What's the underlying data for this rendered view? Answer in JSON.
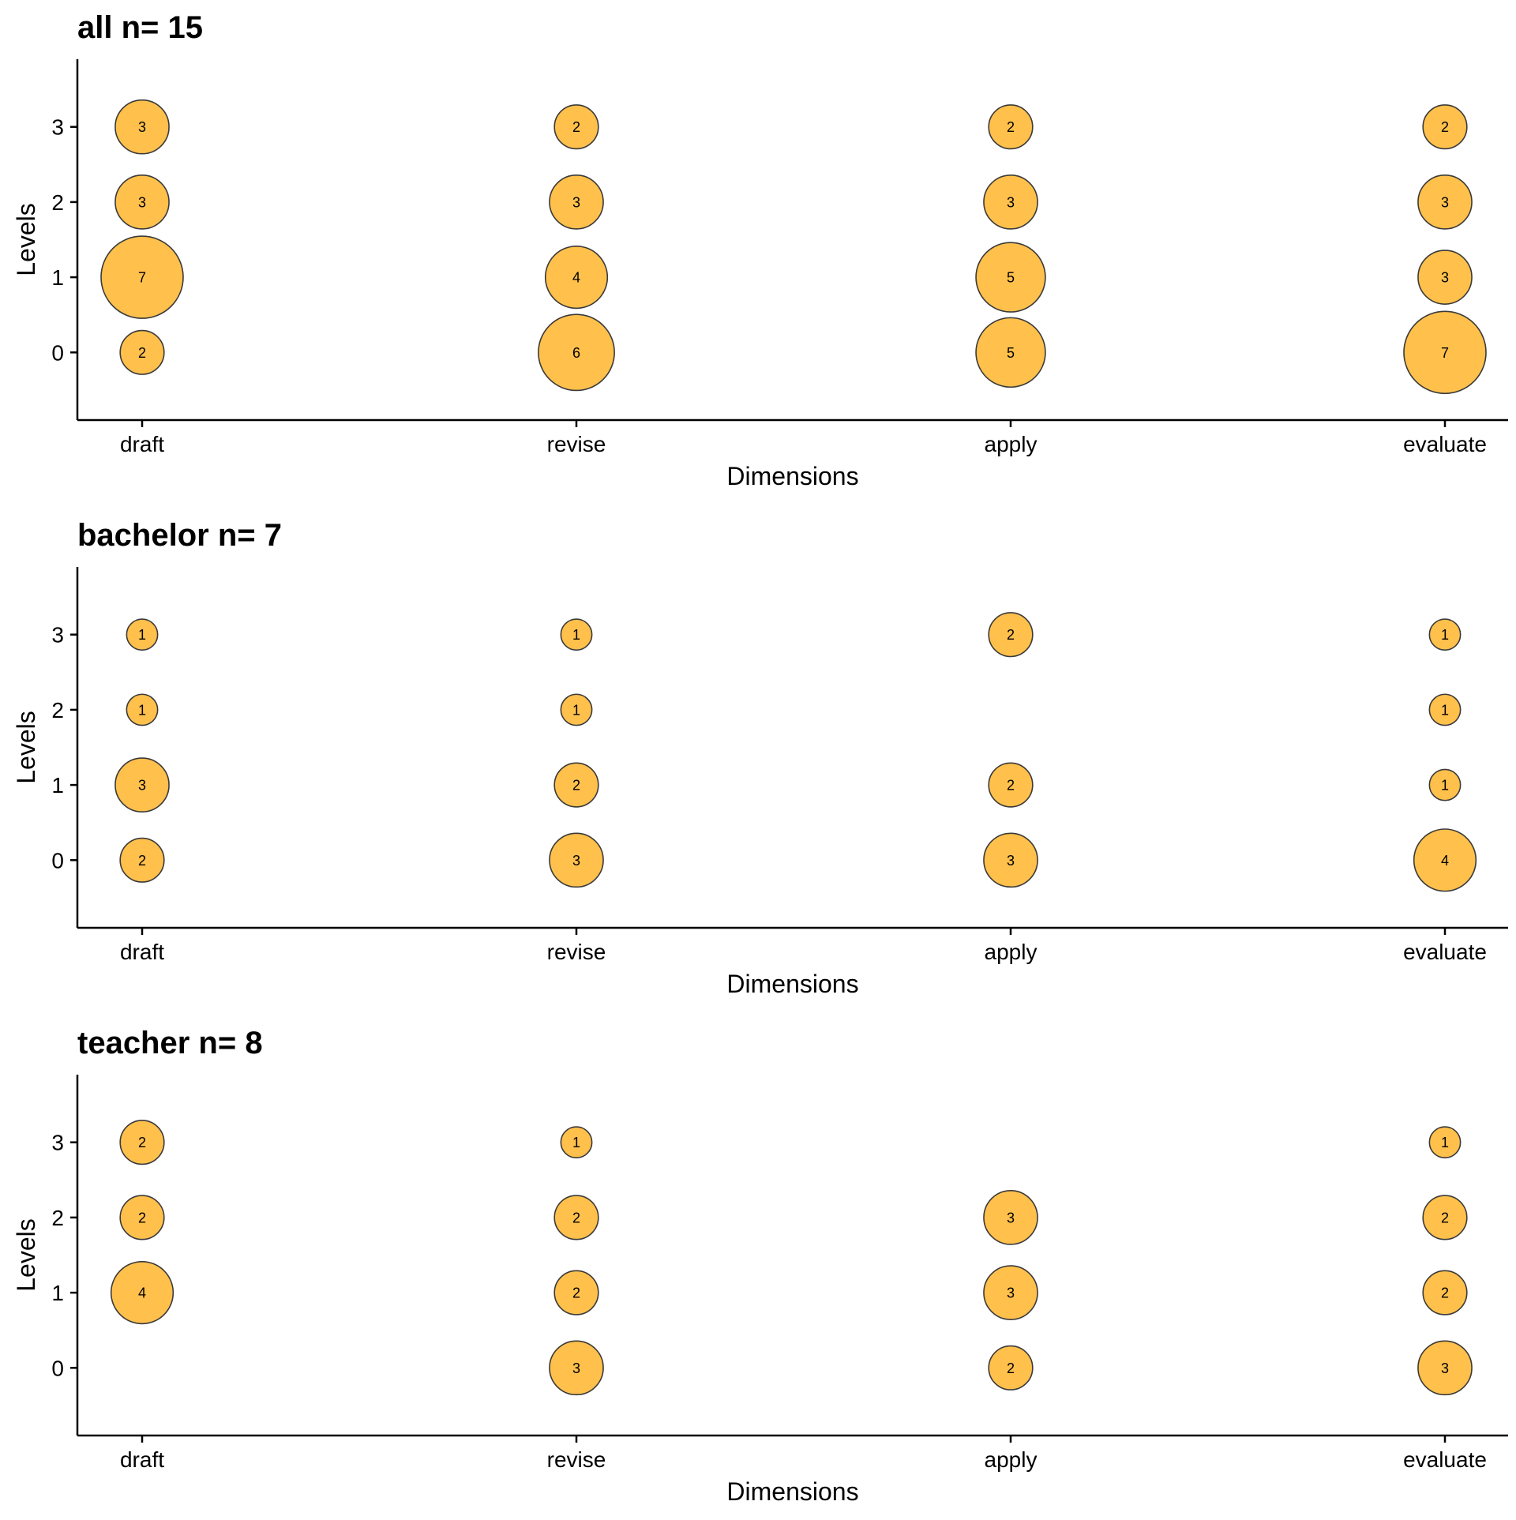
{
  "chart_data": [
    {
      "type": "scatter",
      "title": "all n= 15",
      "xlabel": "Dimensions",
      "ylabel": "Levels",
      "categories": [
        "draft",
        "revise",
        "apply",
        "evaluate"
      ],
      "y_ticks": [
        "0",
        "1",
        "2",
        "3"
      ],
      "ylim": [
        -0.9,
        3.9
      ],
      "grid": false,
      "color": "#FFC04C",
      "points": [
        {
          "x": "draft",
          "y": 3,
          "value": 3
        },
        {
          "x": "draft",
          "y": 2,
          "value": 3
        },
        {
          "x": "draft",
          "y": 1,
          "value": 7
        },
        {
          "x": "draft",
          "y": 0,
          "value": 2
        },
        {
          "x": "revise",
          "y": 3,
          "value": 2
        },
        {
          "x": "revise",
          "y": 2,
          "value": 3
        },
        {
          "x": "revise",
          "y": 1,
          "value": 4
        },
        {
          "x": "revise",
          "y": 0,
          "value": 6
        },
        {
          "x": "apply",
          "y": 3,
          "value": 2
        },
        {
          "x": "apply",
          "y": 2,
          "value": 3
        },
        {
          "x": "apply",
          "y": 1,
          "value": 5
        },
        {
          "x": "apply",
          "y": 0,
          "value": 5
        },
        {
          "x": "evaluate",
          "y": 3,
          "value": 2
        },
        {
          "x": "evaluate",
          "y": 2,
          "value": 3
        },
        {
          "x": "evaluate",
          "y": 1,
          "value": 3
        },
        {
          "x": "evaluate",
          "y": 0,
          "value": 7
        }
      ]
    },
    {
      "type": "scatter",
      "title": "bachelor n= 7",
      "xlabel": "Dimensions",
      "ylabel": "Levels",
      "categories": [
        "draft",
        "revise",
        "apply",
        "evaluate"
      ],
      "y_ticks": [
        "0",
        "1",
        "2",
        "3"
      ],
      "ylim": [
        -0.9,
        3.9
      ],
      "grid": false,
      "color": "#FFC04C",
      "points": [
        {
          "x": "draft",
          "y": 3,
          "value": 1
        },
        {
          "x": "draft",
          "y": 2,
          "value": 1
        },
        {
          "x": "draft",
          "y": 1,
          "value": 3
        },
        {
          "x": "draft",
          "y": 0,
          "value": 2
        },
        {
          "x": "revise",
          "y": 3,
          "value": 1
        },
        {
          "x": "revise",
          "y": 2,
          "value": 1
        },
        {
          "x": "revise",
          "y": 1,
          "value": 2
        },
        {
          "x": "revise",
          "y": 0,
          "value": 3
        },
        {
          "x": "apply",
          "y": 3,
          "value": 2
        },
        {
          "x": "apply",
          "y": 1,
          "value": 2
        },
        {
          "x": "apply",
          "y": 0,
          "value": 3
        },
        {
          "x": "evaluate",
          "y": 3,
          "value": 1
        },
        {
          "x": "evaluate",
          "y": 2,
          "value": 1
        },
        {
          "x": "evaluate",
          "y": 1,
          "value": 1
        },
        {
          "x": "evaluate",
          "y": 0,
          "value": 4
        }
      ]
    },
    {
      "type": "scatter",
      "title": "teacher n= 8",
      "xlabel": "Dimensions",
      "ylabel": "Levels",
      "categories": [
        "draft",
        "revise",
        "apply",
        "evaluate"
      ],
      "y_ticks": [
        "0",
        "1",
        "2",
        "3"
      ],
      "ylim": [
        -0.9,
        3.9
      ],
      "grid": false,
      "color": "#FFC04C",
      "points": [
        {
          "x": "draft",
          "y": 3,
          "value": 2
        },
        {
          "x": "draft",
          "y": 2,
          "value": 2
        },
        {
          "x": "draft",
          "y": 1,
          "value": 4
        },
        {
          "x": "revise",
          "y": 3,
          "value": 1
        },
        {
          "x": "revise",
          "y": 2,
          "value": 2
        },
        {
          "x": "revise",
          "y": 1,
          "value": 2
        },
        {
          "x": "revise",
          "y": 0,
          "value": 3
        },
        {
          "x": "apply",
          "y": 2,
          "value": 3
        },
        {
          "x": "apply",
          "y": 1,
          "value": 3
        },
        {
          "x": "apply",
          "y": 0,
          "value": 2
        },
        {
          "x": "evaluate",
          "y": 3,
          "value": 1
        },
        {
          "x": "evaluate",
          "y": 2,
          "value": 2
        },
        {
          "x": "evaluate",
          "y": 1,
          "value": 2
        },
        {
          "x": "evaluate",
          "y": 0,
          "value": 3
        }
      ]
    }
  ]
}
